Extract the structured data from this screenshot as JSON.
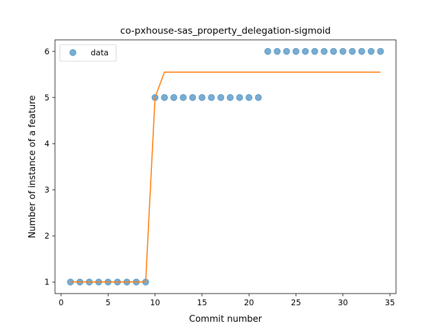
{
  "chart_data": {
    "type": "scatter",
    "title": "co-pxhouse-sas_property_delegation-sigmoid",
    "xlabel": "Commit number",
    "ylabel": "Number of instance of a feature",
    "xlim": [
      -0.65,
      35.65
    ],
    "ylim": [
      0.75,
      6.25
    ],
    "xticks": [
      0,
      5,
      10,
      15,
      20,
      25,
      30,
      35
    ],
    "yticks": [
      1,
      2,
      3,
      4,
      5,
      6
    ],
    "grid": false,
    "legend_position": "top-left",
    "series": [
      {
        "name": "data",
        "kind": "scatter",
        "color": "#1f77b4",
        "x": [
          1,
          2,
          3,
          4,
          5,
          6,
          7,
          8,
          9,
          10,
          11,
          12,
          13,
          14,
          15,
          16,
          17,
          18,
          19,
          20,
          21,
          22,
          23,
          24,
          25,
          26,
          27,
          28,
          29,
          30,
          31,
          32,
          33,
          34
        ],
        "y": [
          1,
          1,
          1,
          1,
          1,
          1,
          1,
          1,
          1,
          5,
          5,
          5,
          5,
          5,
          5,
          5,
          5,
          5,
          5,
          5,
          5,
          6,
          6,
          6,
          6,
          6,
          6,
          6,
          6,
          6,
          6,
          6,
          6,
          6
        ]
      },
      {
        "kind": "line",
        "color": "#ff7f0e",
        "x": [
          1,
          2,
          3,
          4,
          5,
          6,
          7,
          8,
          9,
          10,
          11,
          12,
          13,
          14,
          15,
          16,
          17,
          18,
          19,
          20,
          21,
          22,
          23,
          24,
          25,
          26,
          27,
          28,
          29,
          30,
          31,
          32,
          33,
          34
        ],
        "y": [
          1,
          1,
          1,
          1,
          1,
          1,
          1,
          1,
          1,
          5.0,
          5.55,
          5.55,
          5.55,
          5.55,
          5.55,
          5.55,
          5.55,
          5.55,
          5.55,
          5.55,
          5.55,
          5.55,
          5.55,
          5.55,
          5.55,
          5.55,
          5.55,
          5.55,
          5.55,
          5.55,
          5.55,
          5.55,
          5.55,
          5.55
        ]
      }
    ]
  }
}
